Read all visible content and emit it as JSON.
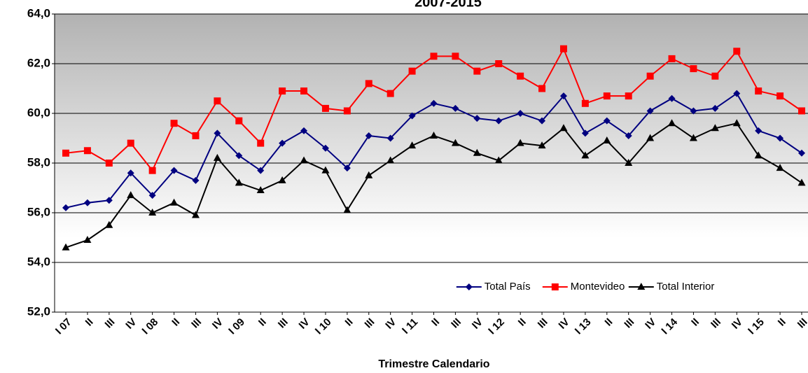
{
  "chart_data": {
    "type": "line",
    "title": "2007-2015",
    "x_label": "Trimestre Calendario",
    "categories": [
      "I 07",
      "II",
      "III",
      "IV",
      "I 08",
      "II",
      "III",
      "IV",
      "I 09",
      "II",
      "III",
      "IV",
      "I 10",
      "II",
      "III",
      "IV",
      "I 11",
      "II",
      "III",
      "IV",
      "I 12",
      "II",
      "III",
      "IV",
      "I 13",
      "II",
      "III",
      "IV",
      "I 14",
      "II",
      "III",
      "IV",
      "I 15",
      "II",
      "III"
    ],
    "series": [
      {
        "name": "Total País",
        "color": "#000080",
        "marker": "diamond",
        "values": [
          56.2,
          56.4,
          56.5,
          57.6,
          56.7,
          57.7,
          57.3,
          59.2,
          58.3,
          57.7,
          58.8,
          59.3,
          58.6,
          57.8,
          59.1,
          59.0,
          59.9,
          60.4,
          60.2,
          59.8,
          59.7,
          60.0,
          59.7,
          60.7,
          59.2,
          59.7,
          59.1,
          60.1,
          60.6,
          60.1,
          60.2,
          60.8,
          59.3,
          59.0,
          58.4
        ]
      },
      {
        "name": "Montevideo",
        "color": "#ff0000",
        "marker": "square",
        "values": [
          58.4,
          58.5,
          58.0,
          58.8,
          57.7,
          59.6,
          59.1,
          60.5,
          59.7,
          58.8,
          60.9,
          60.9,
          60.2,
          60.1,
          61.2,
          60.8,
          61.7,
          62.3,
          62.3,
          61.7,
          62.0,
          61.5,
          61.0,
          62.6,
          60.4,
          60.7,
          60.7,
          61.5,
          62.2,
          61.8,
          61.5,
          62.5,
          60.9,
          60.7,
          60.1
        ]
      },
      {
        "name": "Total Interior",
        "color": "#000000",
        "marker": "triangle",
        "values": [
          54.6,
          54.9,
          55.5,
          56.7,
          56.0,
          56.4,
          55.9,
          58.2,
          57.2,
          56.9,
          57.3,
          58.1,
          57.7,
          56.1,
          57.5,
          58.1,
          58.7,
          59.1,
          58.8,
          58.4,
          58.1,
          58.8,
          58.7,
          59.4,
          58.3,
          58.9,
          58.0,
          59.0,
          59.6,
          59.0,
          59.4,
          59.6,
          58.3,
          57.8,
          57.2
        ]
      }
    ],
    "ylim": [
      52,
      64
    ],
    "yticks": [
      {
        "value": 52,
        "label": "52,0"
      },
      {
        "value": 54,
        "label": "54,0"
      },
      {
        "value": 56,
        "label": "56,0"
      },
      {
        "value": 58,
        "label": "58,0"
      },
      {
        "value": 60,
        "label": "60,0"
      },
      {
        "value": 62,
        "label": "62,0"
      },
      {
        "value": 64,
        "label": "64,0"
      }
    ],
    "grid": true,
    "legend": "lower right"
  }
}
